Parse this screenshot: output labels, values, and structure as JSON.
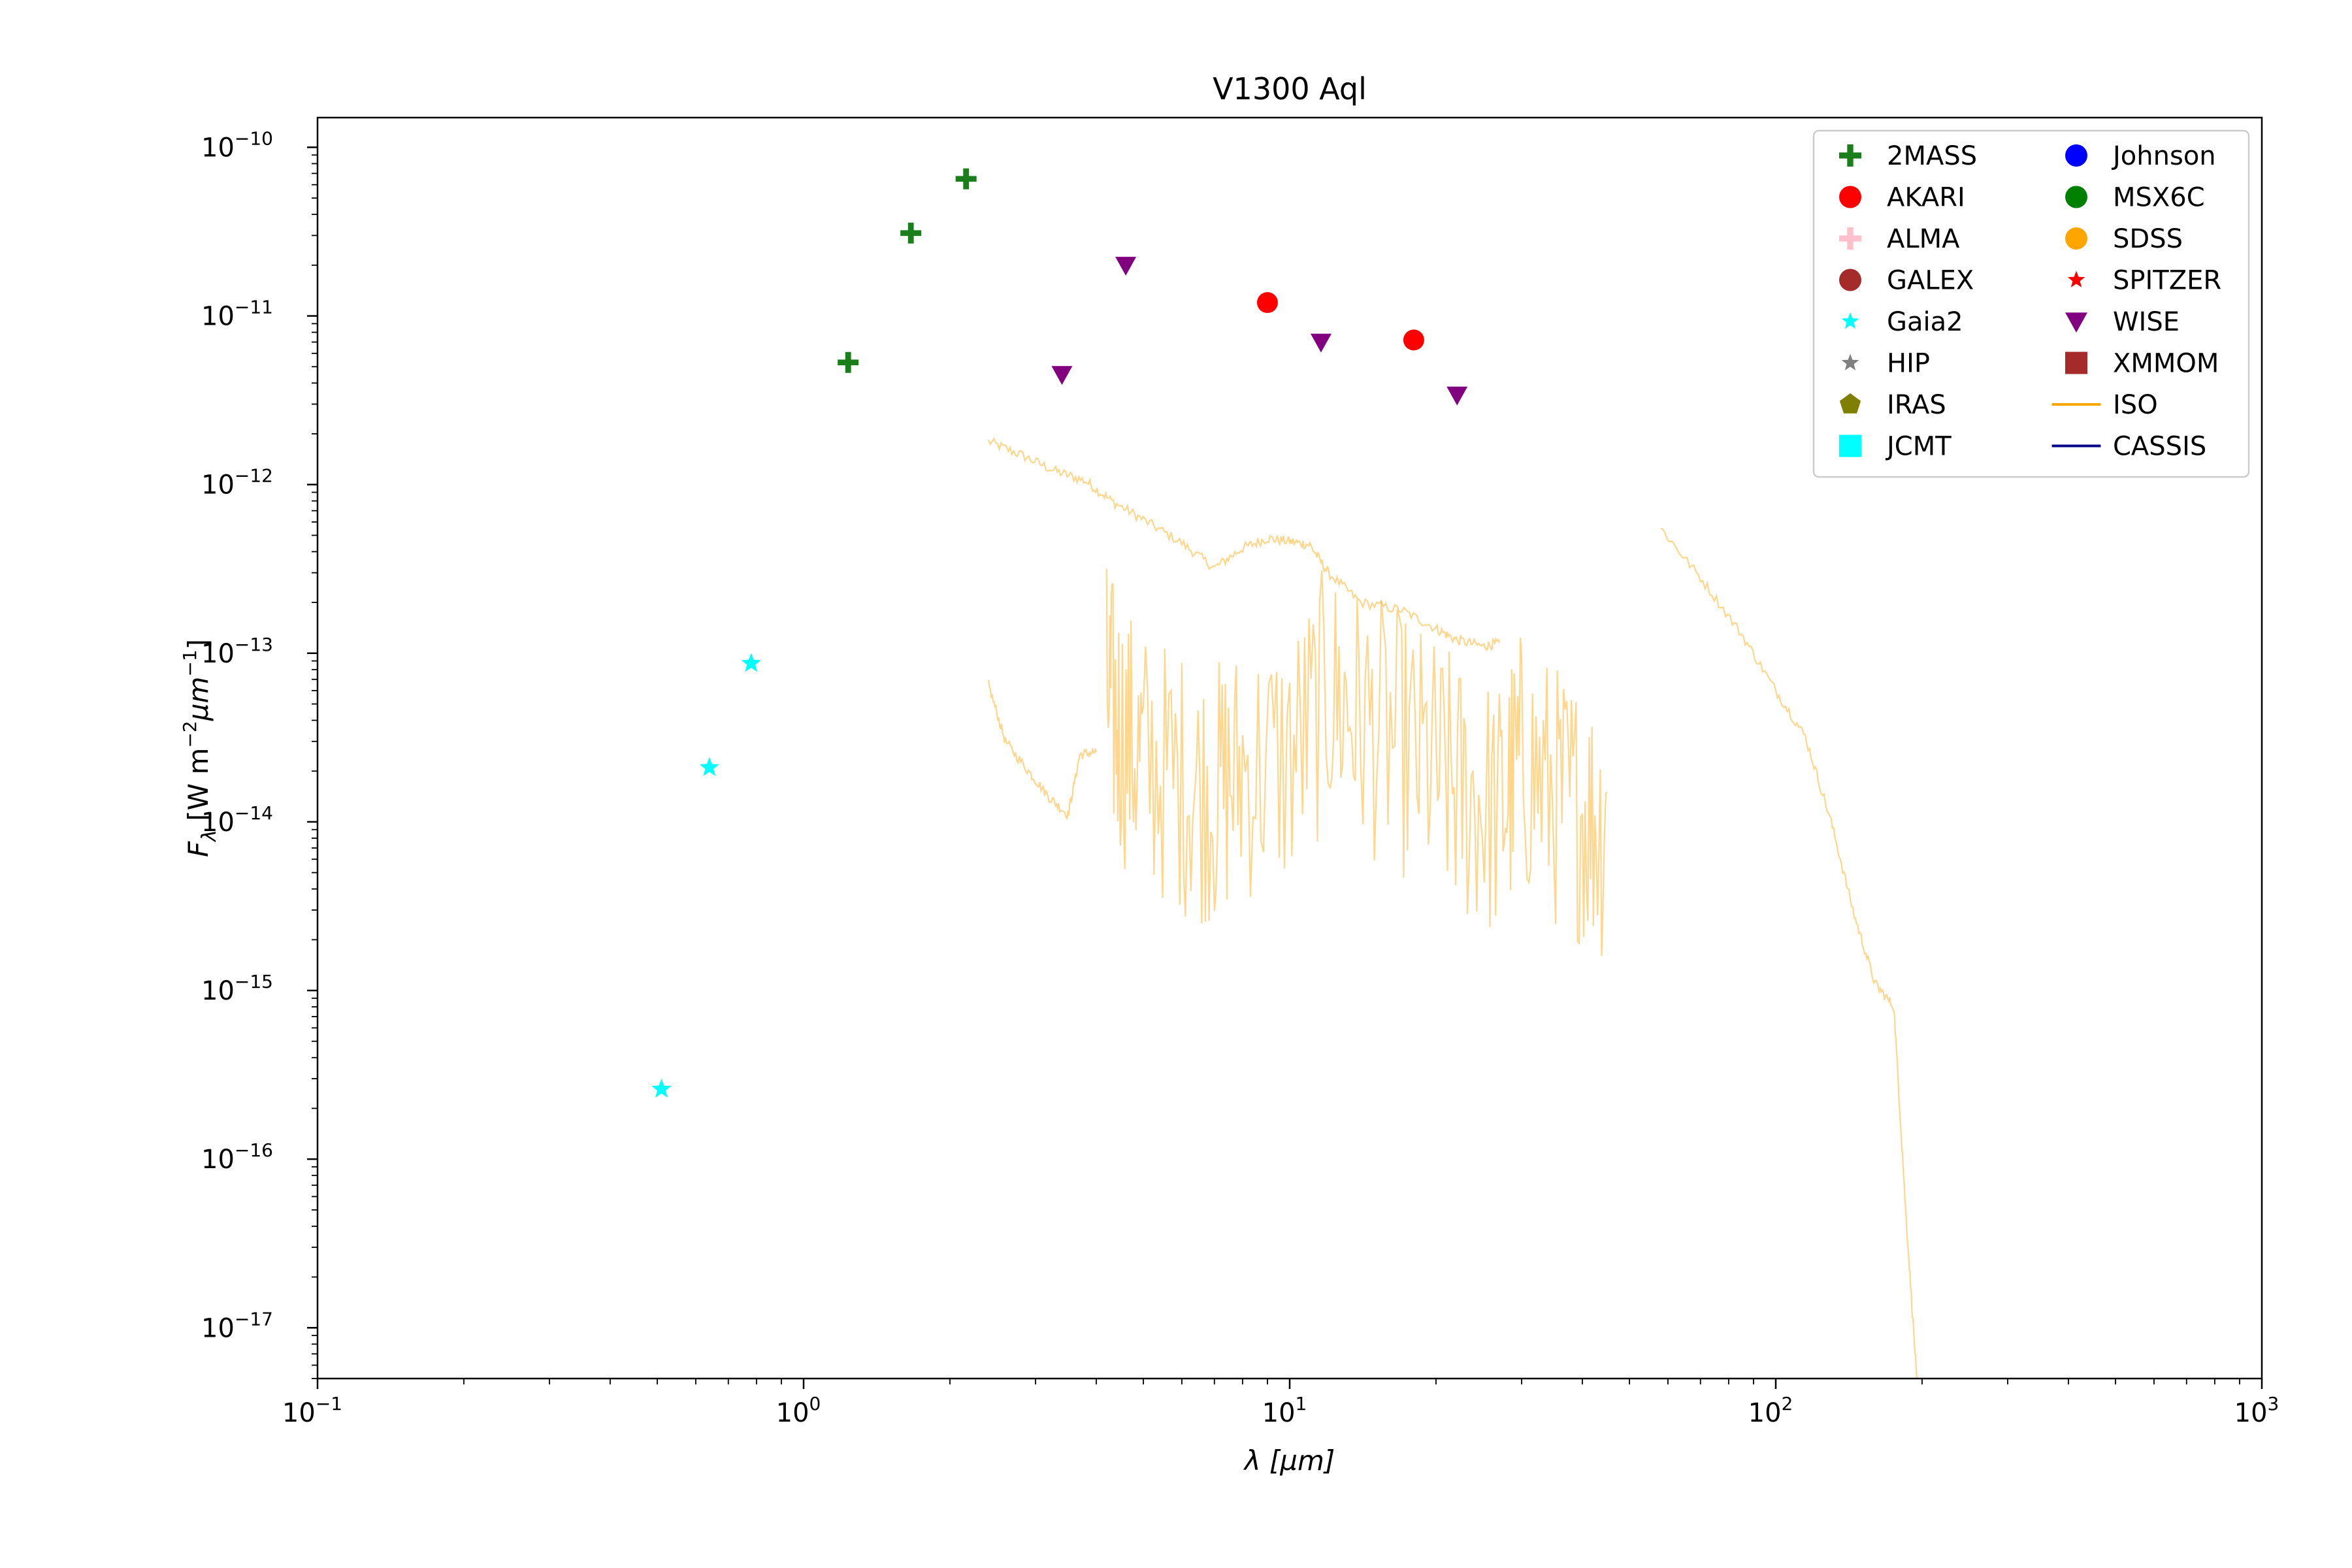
{
  "chart_data": {
    "type": "scatter",
    "title": "V1300 Aql",
    "xlabel": "λ [μm]",
    "ylabel": "F_λ [W m^-2 μm^-1]",
    "x_scale": "log",
    "y_scale": "log",
    "xlim": [
      0.1,
      1000
    ],
    "ylim": [
      5e-18,
      1.5e-10
    ],
    "x_ticks": [
      "10^-1",
      "10^0",
      "10^1",
      "10^2",
      "10^3"
    ],
    "y_ticks": [
      "10^-17",
      "10^-16",
      "10^-15",
      "10^-14",
      "10^-13",
      "10^-12",
      "10^-11",
      "10^-10"
    ],
    "legend_position": "top-right",
    "legend": [
      {
        "name": "2MASS",
        "marker": "plus",
        "color": "#1a7f1a"
      },
      {
        "name": "AKARI",
        "marker": "circle",
        "color": "#ff0000"
      },
      {
        "name": "ALMA",
        "marker": "plus",
        "color": "#ffc0cb"
      },
      {
        "name": "GALEX",
        "marker": "circle",
        "color": "#a52a2a"
      },
      {
        "name": "Gaia2",
        "marker": "star",
        "color": "#00ffff"
      },
      {
        "name": "HIP",
        "marker": "star",
        "color": "#808080"
      },
      {
        "name": "IRAS",
        "marker": "pentagon",
        "color": "#808000"
      },
      {
        "name": "JCMT",
        "marker": "square",
        "color": "#00ffff"
      },
      {
        "name": "Johnson",
        "marker": "circle",
        "color": "#0000ff"
      },
      {
        "name": "MSX6C",
        "marker": "circle",
        "color": "#008000"
      },
      {
        "name": "SDSS",
        "marker": "circle",
        "color": "#ffa500"
      },
      {
        "name": "SPITZER",
        "marker": "star",
        "color": "#ff0000"
      },
      {
        "name": "WISE",
        "marker": "triangle-down",
        "color": "#800080"
      },
      {
        "name": "XMMOM",
        "marker": "square",
        "color": "#a52a2a"
      },
      {
        "name": "ISO",
        "marker": "line",
        "color": "#ffa500"
      },
      {
        "name": "CASSIS",
        "marker": "line",
        "color": "#00008b"
      }
    ],
    "series": [
      {
        "name": "2MASS",
        "marker": "plus",
        "color": "#1a7f1a",
        "points": [
          [
            1.235,
            5.3e-12
          ],
          [
            1.662,
            3.1e-11
          ],
          [
            2.159,
            6.5e-11
          ]
        ]
      },
      {
        "name": "AKARI",
        "marker": "circle",
        "color": "#ff0000",
        "points": [
          [
            9.0,
            1.2e-11
          ],
          [
            18.0,
            7.2e-12
          ]
        ]
      },
      {
        "name": "Gaia2",
        "marker": "star",
        "color": "#00ffff",
        "points": [
          [
            0.51,
            2.6e-16
          ],
          [
            0.64,
            2.1e-14
          ],
          [
            0.78,
            8.7e-14
          ]
        ]
      },
      {
        "name": "WISE",
        "marker": "triangle-down",
        "color": "#800080",
        "points": [
          [
            3.4,
            4.5e-12
          ],
          [
            4.6,
            2e-11
          ],
          [
            11.6,
            7e-12
          ],
          [
            22.1,
            3.4e-12
          ]
        ]
      }
    ],
    "spectra": [
      {
        "name": "ISO",
        "color": "#ffa500",
        "segments": [
          [
            [
              2.4,
              1.8e-12
            ],
            [
              2.8,
              1.5e-12
            ],
            [
              3.3,
              1.2e-12
            ],
            [
              3.8,
              1.05e-12
            ],
            [
              4.3,
              8e-13
            ],
            [
              5.0,
              6.2e-13
            ],
            [
              6.0,
              4.5e-13
            ],
            [
              7.0,
              3.2e-13
            ],
            [
              8.0,
              4.2e-13
            ],
            [
              9.0,
              4.8e-13
            ],
            [
              10.0,
              4.6e-13
            ],
            [
              11.0,
              4.4e-13
            ],
            [
              12.0,
              3e-13
            ],
            [
              14.0,
              2e-13
            ],
            [
              17.0,
              1.8e-13
            ],
            [
              20.0,
              1.4e-13
            ],
            [
              22.0,
              1.2e-13
            ],
            [
              25.0,
              1.1e-13
            ],
            [
              27.0,
              1.15e-13
            ]
          ],
          [
            [
              2.4,
              6.5e-14
            ],
            [
              2.6,
              3e-14
            ],
            [
              2.9,
              2e-14
            ],
            [
              3.2,
              1.4e-14
            ],
            [
              3.5,
              1.1e-14
            ],
            [
              3.7,
              2.5e-14
            ],
            [
              4.0,
              2.6e-14
            ]
          ],
          [
            [
              4.2,
              1e-13
            ],
            [
              4.5,
              6e-14
            ],
            [
              5.0,
              4e-14
            ],
            [
              6.0,
              3e-14
            ],
            [
              7.0,
              2.5e-14
            ],
            [
              8.0,
              3.5e-14
            ],
            [
              10.0,
              4e-14
            ],
            [
              12.0,
              1e-13
            ],
            [
              14.0,
              7e-14
            ],
            [
              17.0,
              5e-14
            ],
            [
              20.0,
              3.5e-14
            ],
            [
              23.0,
              2.5e-14
            ],
            [
              27.0,
              2e-14
            ],
            [
              30.0,
              4e-14
            ],
            [
              35.0,
              2.5e-14
            ],
            [
              40.0,
              2e-14
            ],
            [
              45.0,
              1.5e-14
            ]
          ],
          [
            [
              58.0,
              5.5e-13
            ],
            [
              70.0,
              2.8e-13
            ],
            [
              85.0,
              1.3e-13
            ],
            [
              100.0,
              6e-14
            ],
            [
              115.0,
              3.2e-14
            ],
            [
              130.0,
              1e-14
            ],
            [
              145.0,
              2.8e-15
            ],
            [
              160.0,
              1.1e-15
            ],
            [
              175.0,
              8e-16
            ],
            [
              185.0,
              5e-17
            ],
            [
              195.0,
              5e-18
            ]
          ]
        ]
      }
    ]
  }
}
